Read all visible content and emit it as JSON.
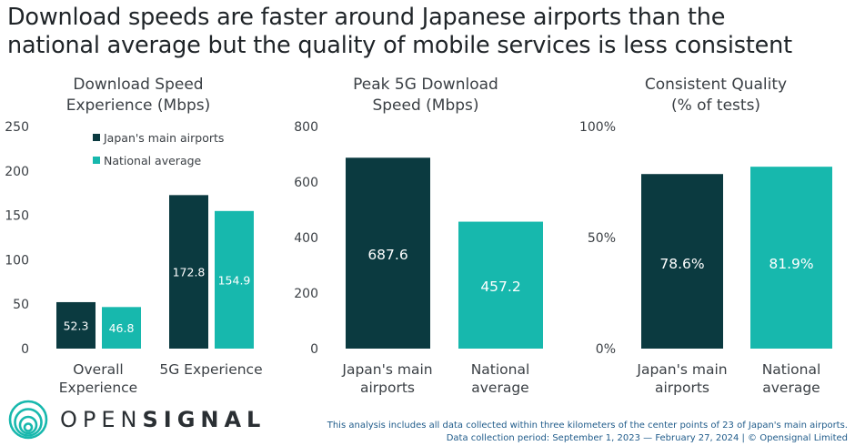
{
  "title": {
    "line1": "Download speeds are faster around Japanese airports than the",
    "line2": "national average but the quality of mobile services is less consistent"
  },
  "colors": {
    "airports": "#0b3a40",
    "national": "#17b8ad",
    "axis": "#666666",
    "text": "#3a3f44"
  },
  "chart_data": [
    {
      "type": "bar",
      "title": [
        "Download Speed",
        "Experience (Mbps)"
      ],
      "categories": [
        [
          "Overall",
          "Experience"
        ],
        [
          "5G Experience"
        ]
      ],
      "series": [
        {
          "name": "Japan's main airports",
          "values": [
            52.3,
            172.8
          ],
          "labels": [
            "52.3",
            "172.8"
          ]
        },
        {
          "name": "National average",
          "values": [
            46.8,
            154.9
          ],
          "labels": [
            "46.8",
            "154.9"
          ]
        }
      ],
      "ylim": [
        0,
        250
      ],
      "yticks": [
        0,
        50,
        100,
        150,
        200,
        250
      ],
      "ytick_labels": [
        "0",
        "50",
        "100",
        "150",
        "200",
        "250"
      ],
      "legend": [
        "Japan's main airports",
        "National average"
      ]
    },
    {
      "type": "bar",
      "title": [
        "Peak 5G Download",
        "Speed (Mbps)"
      ],
      "categories": [
        [
          "Japan's main",
          "airports"
        ],
        [
          "National",
          "average"
        ]
      ],
      "values": [
        687.6,
        457.2
      ],
      "labels": [
        "687.6",
        "457.2"
      ],
      "ylim": [
        0,
        800
      ],
      "yticks": [
        0,
        200,
        400,
        600,
        800
      ],
      "ytick_labels": [
        "0",
        "200",
        "400",
        "600",
        "800"
      ]
    },
    {
      "type": "bar",
      "title": [
        "Consistent Quality",
        "(% of tests)"
      ],
      "categories": [
        [
          "Japan's main",
          "airports"
        ],
        [
          "National",
          "average"
        ]
      ],
      "values": [
        78.6,
        81.9
      ],
      "labels": [
        "78.6%",
        "81.9%"
      ],
      "ylim": [
        0,
        100
      ],
      "yticks": [
        0,
        50,
        100
      ],
      "ytick_labels": [
        "0%",
        "50%",
        "100%"
      ]
    }
  ],
  "brand": {
    "logo_text_light": "OPEN",
    "logo_text_bold": "SIGNAL"
  },
  "footnote": {
    "line1": "This analysis includes all data collected within three kilometers of the center points of 23 of Japan's main airports.",
    "line2": "Data collection period: September 1, 2023 — February 27, 2024 | © Opensignal Limited"
  }
}
